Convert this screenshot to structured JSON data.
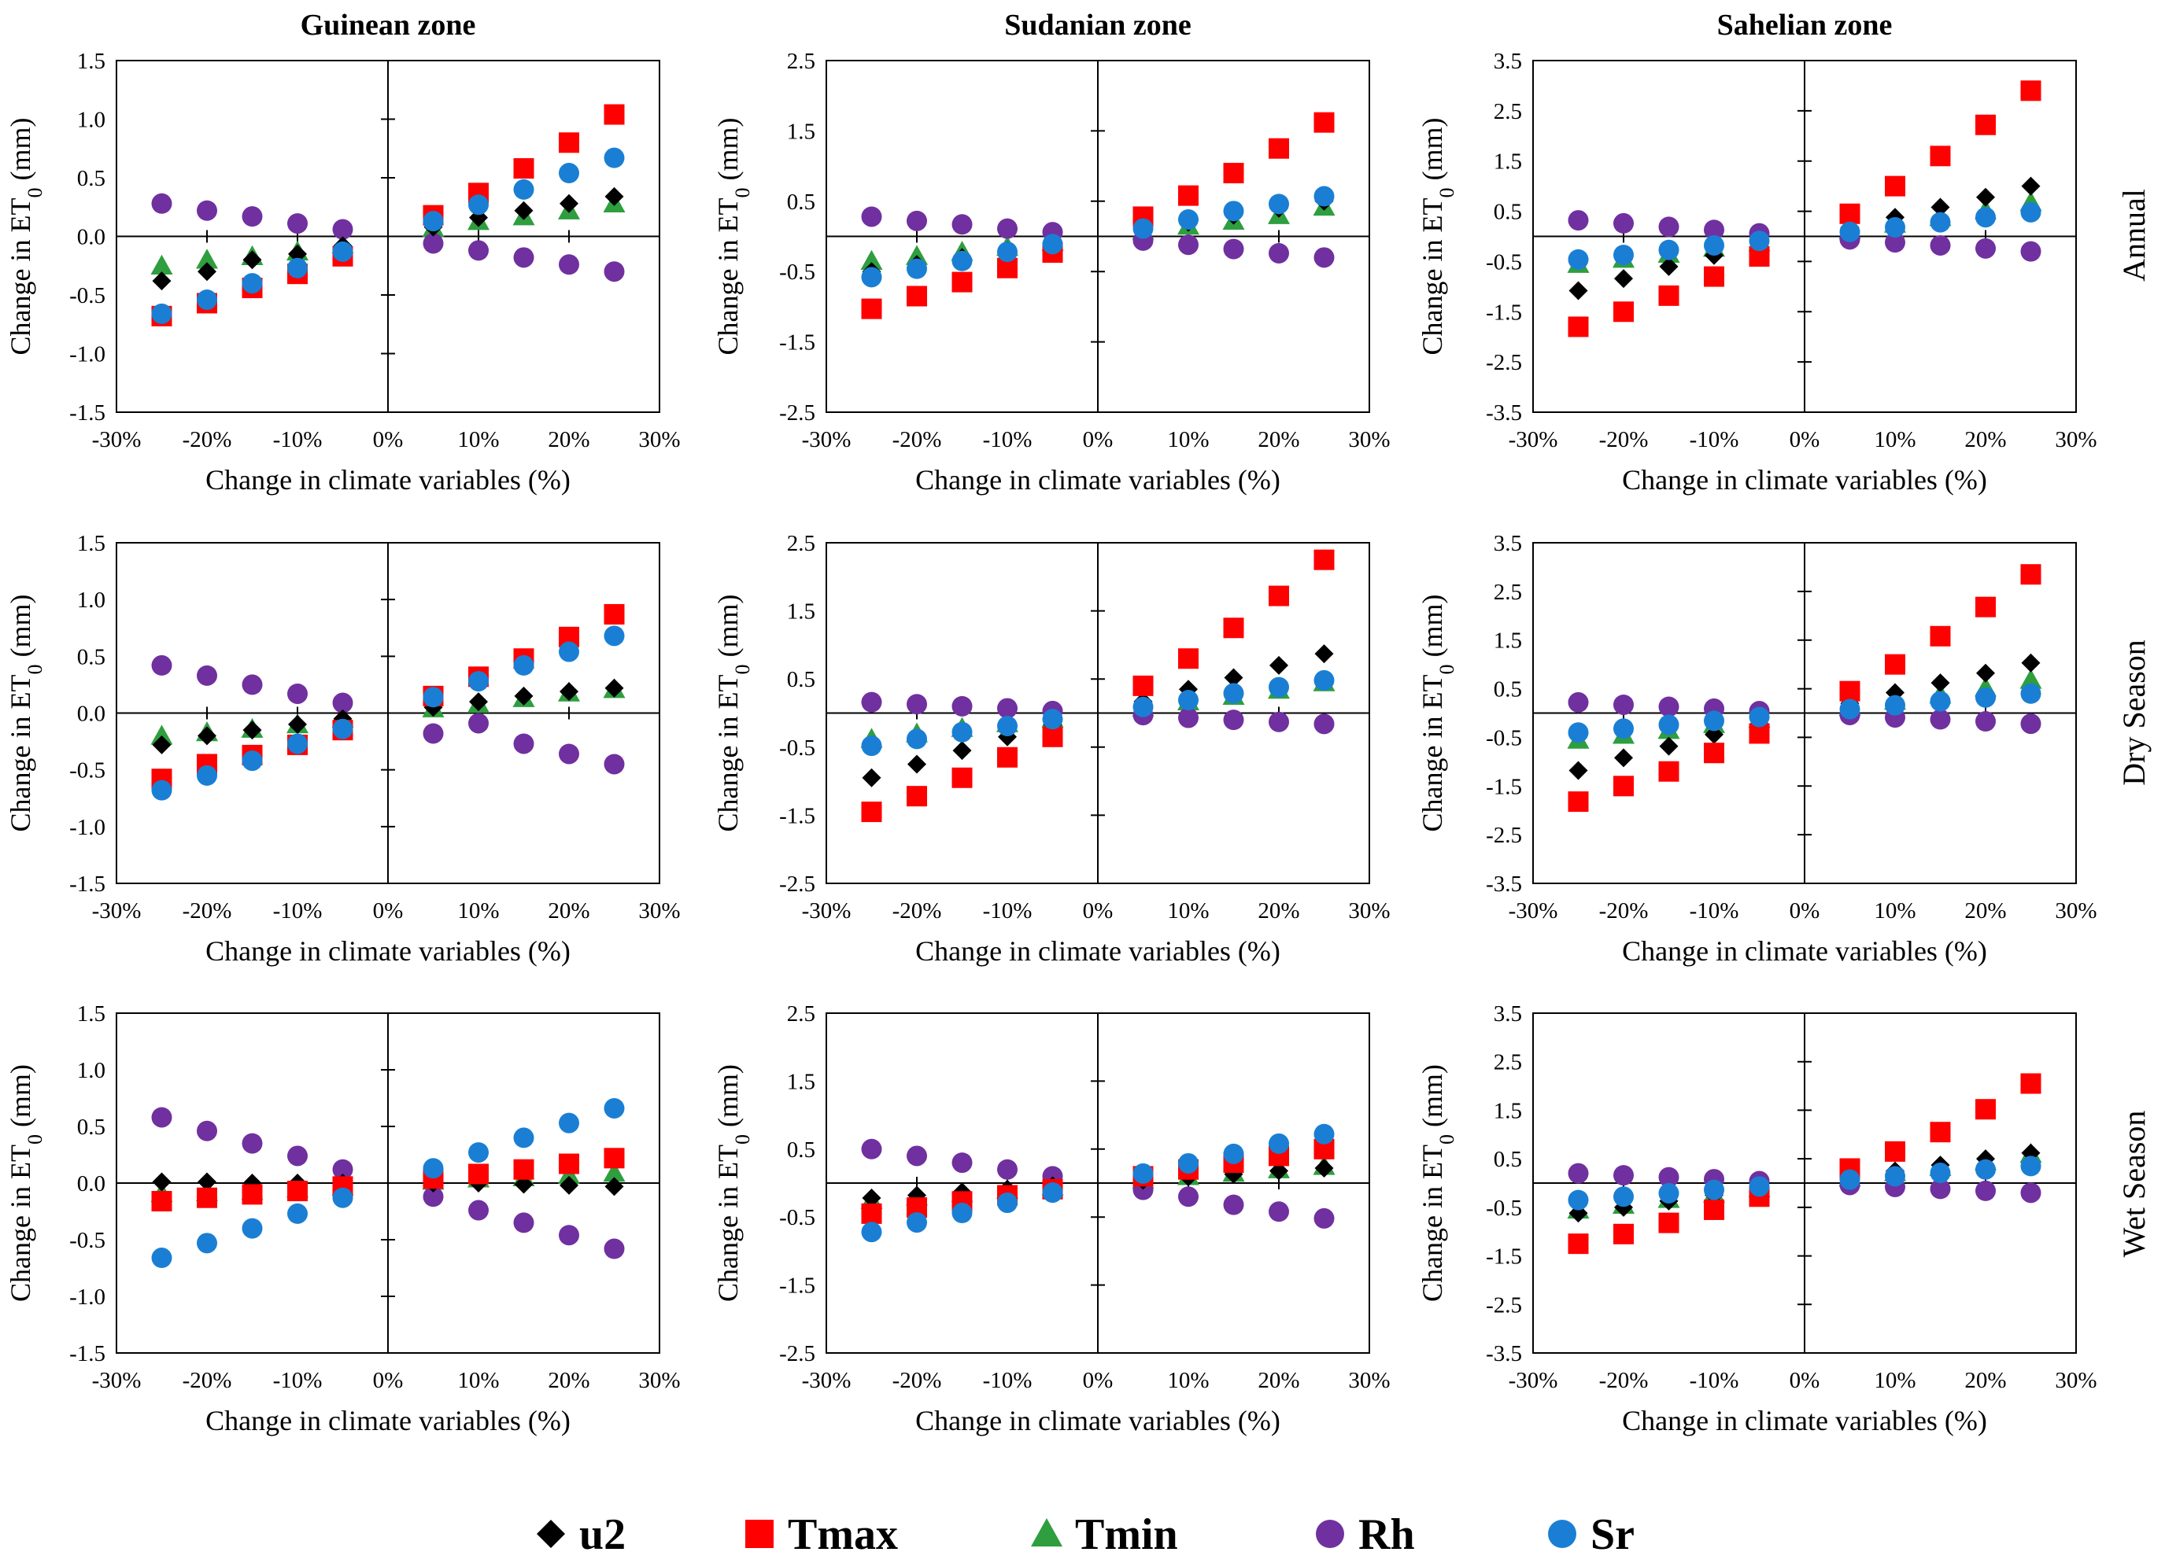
{
  "zones": [
    "Guinean zone",
    "Sudanian zone",
    "Sahelian zone"
  ],
  "seasons": [
    "Annual",
    "Dry Season",
    "Wet Season"
  ],
  "legend": [
    {
      "name": "u2",
      "marker": "diamond",
      "color": "#000000"
    },
    {
      "name": "Tmax",
      "marker": "square",
      "color": "#ff0000"
    },
    {
      "name": "Tmin",
      "marker": "triangle",
      "color": "#2e9e3e"
    },
    {
      "name": "Rh",
      "marker": "circle",
      "color": "#7030a0"
    },
    {
      "name": "Sr",
      "marker": "circle",
      "color": "#1a7fd4"
    }
  ],
  "chart_data": [
    {
      "type": "scatter",
      "zone": "Guinean zone",
      "season": "Annual",
      "xlabel": "Change in climate variables (%)",
      "ylabel": "Change in ET0 (mm)",
      "x": [
        -25,
        -20,
        -15,
        -10,
        -5,
        5,
        10,
        15,
        20,
        25
      ],
      "x_ticks": [
        "-30%",
        "-20%",
        "-10%",
        "0%",
        "10%",
        "20%",
        "30%"
      ],
      "xlim": [
        -30,
        30
      ],
      "ylim": [
        -1.5,
        1.5
      ],
      "y_ticks": [
        "1.5",
        "1.0",
        "0.5",
        "0.0",
        "-0.5",
        "-1.0",
        "-1.5"
      ],
      "series": [
        {
          "name": "u2",
          "values": [
            -0.38,
            -0.3,
            -0.2,
            -0.15,
            -0.08,
            0.08,
            0.16,
            0.22,
            0.28,
            0.34
          ]
        },
        {
          "name": "Tmax",
          "values": [
            -0.68,
            -0.57,
            -0.44,
            -0.32,
            -0.17,
            0.18,
            0.37,
            0.58,
            0.8,
            1.04
          ]
        },
        {
          "name": "Tmin",
          "values": [
            -0.25,
            -0.2,
            -0.17,
            -0.13,
            -0.07,
            0.07,
            0.13,
            0.17,
            0.22,
            0.28
          ]
        },
        {
          "name": "Rh",
          "values": [
            0.28,
            0.22,
            0.17,
            0.11,
            0.06,
            -0.06,
            -0.12,
            -0.18,
            -0.24,
            -0.3
          ]
        },
        {
          "name": "Sr",
          "values": [
            -0.66,
            -0.54,
            -0.4,
            -0.27,
            -0.13,
            0.13,
            0.27,
            0.4,
            0.54,
            0.67
          ]
        }
      ]
    },
    {
      "type": "scatter",
      "zone": "Sudanian zone",
      "season": "Annual",
      "xlabel": "Change in climate variables (%)",
      "ylabel": "Change in ET0 (mm)",
      "x": [
        -25,
        -20,
        -15,
        -10,
        -5,
        5,
        10,
        15,
        20,
        25
      ],
      "x_ticks": [
        "-30%",
        "-20%",
        "-10%",
        "0%",
        "10%",
        "20%",
        "30%"
      ],
      "xlim": [
        -30,
        30
      ],
      "ylim": [
        -2.5,
        2.5
      ],
      "y_ticks": [
        "2.5",
        "1.5",
        "0.5",
        "-0.5",
        "-1.5",
        "-2.5"
      ],
      "series": [
        {
          "name": "u2",
          "values": [
            -0.5,
            -0.4,
            -0.3,
            -0.2,
            -0.1,
            0.1,
            0.2,
            0.3,
            0.4,
            0.5
          ]
        },
        {
          "name": "Tmax",
          "values": [
            -1.03,
            -0.85,
            -0.65,
            -0.45,
            -0.23,
            0.28,
            0.58,
            0.9,
            1.25,
            1.62
          ]
        },
        {
          "name": "Tmin",
          "values": [
            -0.35,
            -0.28,
            -0.22,
            -0.15,
            -0.08,
            0.08,
            0.15,
            0.22,
            0.3,
            0.42
          ]
        },
        {
          "name": "Rh",
          "values": [
            0.28,
            0.22,
            0.17,
            0.11,
            0.06,
            -0.06,
            -0.12,
            -0.18,
            -0.24,
            -0.3
          ]
        },
        {
          "name": "Sr",
          "values": [
            -0.58,
            -0.46,
            -0.35,
            -0.22,
            -0.11,
            0.11,
            0.24,
            0.36,
            0.46,
            0.57
          ]
        }
      ]
    },
    {
      "type": "scatter",
      "zone": "Sahelian zone",
      "season": "Annual",
      "xlabel": "Change in climate variables (%)",
      "ylabel": "Change in ET0 (mm)",
      "x": [
        -25,
        -20,
        -15,
        -10,
        -5,
        5,
        10,
        15,
        20,
        25
      ],
      "x_ticks": [
        "-30%",
        "-20%",
        "-10%",
        "0%",
        "10%",
        "20%",
        "30%"
      ],
      "xlim": [
        -30,
        30
      ],
      "ylim": [
        -3.5,
        3.5
      ],
      "y_ticks": [
        "3.5",
        "2.5",
        "1.5",
        "0.5",
        "-0.5",
        "-1.5",
        "-2.5",
        "-3.5"
      ],
      "series": [
        {
          "name": "u2",
          "values": [
            -1.08,
            -0.84,
            -0.6,
            -0.38,
            -0.18,
            0.18,
            0.38,
            0.58,
            0.78,
            1.0
          ]
        },
        {
          "name": "Tmax",
          "values": [
            -1.8,
            -1.5,
            -1.18,
            -0.8,
            -0.4,
            0.45,
            1.0,
            1.6,
            2.22,
            2.9
          ]
        },
        {
          "name": "Tmin",
          "values": [
            -0.55,
            -0.45,
            -0.35,
            -0.23,
            -0.12,
            0.12,
            0.25,
            0.38,
            0.52,
            0.68
          ]
        },
        {
          "name": "Rh",
          "values": [
            0.32,
            0.26,
            0.19,
            0.13,
            0.06,
            -0.06,
            -0.12,
            -0.18,
            -0.24,
            -0.3
          ]
        },
        {
          "name": "Sr",
          "values": [
            -0.46,
            -0.37,
            -0.27,
            -0.18,
            -0.09,
            0.09,
            0.18,
            0.28,
            0.38,
            0.48
          ]
        }
      ]
    },
    {
      "type": "scatter",
      "zone": "Guinean zone",
      "season": "Dry Season",
      "xlabel": "Change in climate variables (%)",
      "ylabel": "Change in ET0 (mm)",
      "x": [
        -25,
        -20,
        -15,
        -10,
        -5,
        5,
        10,
        15,
        20,
        25
      ],
      "x_ticks": [
        "-30%",
        "-20%",
        "-10%",
        "0%",
        "10%",
        "20%",
        "30%"
      ],
      "xlim": [
        -30,
        30
      ],
      "ylim": [
        -1.5,
        1.5
      ],
      "y_ticks": [
        "1.5",
        "1.0",
        "0.5",
        "0.0",
        "-0.5",
        "-1.0",
        "-1.5"
      ],
      "series": [
        {
          "name": "u2",
          "values": [
            -0.28,
            -0.2,
            -0.15,
            -0.1,
            -0.05,
            0.05,
            0.1,
            0.15,
            0.19,
            0.22
          ]
        },
        {
          "name": "Tmax",
          "values": [
            -0.58,
            -0.45,
            -0.37,
            -0.28,
            -0.15,
            0.15,
            0.32,
            0.48,
            0.67,
            0.87
          ]
        },
        {
          "name": "Tmin",
          "values": [
            -0.2,
            -0.17,
            -0.14,
            -0.1,
            -0.05,
            0.04,
            0.08,
            0.13,
            0.18,
            0.21
          ]
        },
        {
          "name": "Rh",
          "values": [
            0.42,
            0.33,
            0.25,
            0.17,
            0.09,
            -0.18,
            -0.09,
            -0.27,
            -0.36,
            -0.45
          ]
        },
        {
          "name": "Sr",
          "values": [
            -0.68,
            -0.55,
            -0.42,
            -0.27,
            -0.14,
            0.14,
            0.28,
            0.42,
            0.54,
            0.68
          ]
        }
      ]
    },
    {
      "type": "scatter",
      "zone": "Sudanian zone",
      "season": "Dry Season",
      "xlabel": "Change in climate variables (%)",
      "ylabel": "Change in ET0 (mm)",
      "x": [
        -25,
        -20,
        -15,
        -10,
        -5,
        5,
        10,
        15,
        20,
        25
      ],
      "x_ticks": [
        "-30%",
        "-20%",
        "-10%",
        "0%",
        "10%",
        "20%",
        "30%"
      ],
      "xlim": [
        -30,
        30
      ],
      "ylim": [
        -2.5,
        2.5
      ],
      "y_ticks": [
        "2.5",
        "1.5",
        "0.5",
        "-0.5",
        "-1.5",
        "-2.5"
      ],
      "series": [
        {
          "name": "u2",
          "values": [
            -0.95,
            -0.75,
            -0.55,
            -0.35,
            -0.17,
            0.17,
            0.35,
            0.52,
            0.7,
            0.87
          ]
        },
        {
          "name": "Tmax",
          "values": [
            -1.45,
            -1.22,
            -0.95,
            -0.65,
            -0.35,
            0.4,
            0.8,
            1.25,
            1.72,
            2.25
          ]
        },
        {
          "name": "Tmin",
          "values": [
            -0.38,
            -0.3,
            -0.22,
            -0.15,
            -0.08,
            0.08,
            0.17,
            0.25,
            0.34,
            0.45
          ]
        },
        {
          "name": "Rh",
          "values": [
            0.16,
            0.13,
            0.1,
            0.07,
            0.03,
            -0.03,
            -0.07,
            -0.1,
            -0.13,
            -0.16
          ]
        },
        {
          "name": "Sr",
          "values": [
            -0.48,
            -0.38,
            -0.28,
            -0.19,
            -0.09,
            0.09,
            0.19,
            0.29,
            0.38,
            0.48
          ]
        }
      ]
    },
    {
      "type": "scatter",
      "zone": "Sahelian zone",
      "season": "Dry Season",
      "xlabel": "Change in climate variables (%)",
      "ylabel": "Change in ET0 (mm)",
      "x": [
        -25,
        -20,
        -15,
        -10,
        -5,
        5,
        10,
        15,
        20,
        25
      ],
      "x_ticks": [
        "-30%",
        "-20%",
        "-10%",
        "0%",
        "10%",
        "20%",
        "30%"
      ],
      "xlim": [
        -30,
        30
      ],
      "ylim": [
        -3.5,
        3.5
      ],
      "y_ticks": [
        "3.5",
        "2.5",
        "1.5",
        "0.5",
        "-0.5",
        "-1.5",
        "-2.5",
        "-3.5"
      ],
      "series": [
        {
          "name": "u2",
          "values": [
            -1.18,
            -0.92,
            -0.68,
            -0.44,
            -0.22,
            0.2,
            0.42,
            0.62,
            0.82,
            1.03
          ]
        },
        {
          "name": "Tmax",
          "values": [
            -1.82,
            -1.5,
            -1.2,
            -0.82,
            -0.42,
            0.45,
            1.0,
            1.58,
            2.18,
            2.85
          ]
        },
        {
          "name": "Tmin",
          "values": [
            -0.55,
            -0.45,
            -0.35,
            -0.23,
            -0.12,
            0.12,
            0.25,
            0.38,
            0.52,
            0.68
          ]
        },
        {
          "name": "Rh",
          "values": [
            0.22,
            0.17,
            0.13,
            0.09,
            0.04,
            -0.04,
            -0.09,
            -0.13,
            -0.17,
            -0.22
          ]
        },
        {
          "name": "Sr",
          "values": [
            -0.4,
            -0.32,
            -0.24,
            -0.16,
            -0.08,
            0.08,
            0.16,
            0.24,
            0.32,
            0.4
          ]
        }
      ]
    },
    {
      "type": "scatter",
      "zone": "Guinean zone",
      "season": "Wet Season",
      "xlabel": "Change in climate variables (%)",
      "ylabel": "Change in ET0 (mm)",
      "x": [
        -25,
        -20,
        -15,
        -10,
        -5,
        5,
        10,
        15,
        20,
        25
      ],
      "x_ticks": [
        "-30%",
        "-20%",
        "-10%",
        "0%",
        "10%",
        "20%",
        "30%"
      ],
      "xlim": [
        -30,
        30
      ],
      "ylim": [
        -1.5,
        1.5
      ],
      "y_ticks": [
        "1.5",
        "1.0",
        "0.5",
        "0.0",
        "-0.5",
        "-1.0",
        "-1.5"
      ],
      "series": [
        {
          "name": "u2",
          "values": [
            0.01,
            0.01,
            0.0,
            0.0,
            0.0,
            0.0,
            0.0,
            -0.01,
            -0.02,
            -0.03
          ]
        },
        {
          "name": "Tmax",
          "values": [
            -0.16,
            -0.13,
            -0.1,
            -0.07,
            -0.03,
            0.04,
            0.08,
            0.12,
            0.17,
            0.22
          ]
        },
        {
          "name": "Tmin",
          "values": [
            -0.09,
            -0.08,
            -0.07,
            -0.05,
            -0.03,
            0.02,
            0.04,
            0.05,
            0.07,
            0.09
          ]
        },
        {
          "name": "Rh",
          "values": [
            0.58,
            0.46,
            0.35,
            0.24,
            0.12,
            -0.12,
            -0.24,
            -0.35,
            -0.46,
            -0.58
          ]
        },
        {
          "name": "Sr",
          "values": [
            -0.66,
            -0.53,
            -0.4,
            -0.27,
            -0.13,
            0.13,
            0.27,
            0.4,
            0.53,
            0.66
          ]
        }
      ]
    },
    {
      "type": "scatter",
      "zone": "Sudanian zone",
      "season": "Wet Season",
      "xlabel": "Change in climate variables (%)",
      "ylabel": "Change in ET0 (mm)",
      "x": [
        -25,
        -20,
        -15,
        -10,
        -5,
        5,
        10,
        15,
        20,
        25
      ],
      "x_ticks": [
        "-30%",
        "-20%",
        "-10%",
        "0%",
        "10%",
        "20%",
        "30%"
      ],
      "xlim": [
        -30,
        30
      ],
      "ylim": [
        -2.5,
        2.5
      ],
      "y_ticks": [
        "2.5",
        "1.5",
        "0.5",
        "-0.5",
        "-1.5",
        "-2.5"
      ],
      "series": [
        {
          "name": "u2",
          "values": [
            -0.22,
            -0.18,
            -0.13,
            -0.09,
            -0.04,
            0.04,
            0.09,
            0.13,
            0.18,
            0.22
          ]
        },
        {
          "name": "Tmax",
          "values": [
            -0.45,
            -0.36,
            -0.27,
            -0.18,
            -0.09,
            0.1,
            0.2,
            0.3,
            0.4,
            0.5
          ]
        },
        {
          "name": "Tmin",
          "values": [
            -0.25,
            -0.2,
            -0.15,
            -0.1,
            -0.05,
            0.05,
            0.1,
            0.15,
            0.2,
            0.25
          ]
        },
        {
          "name": "Rh",
          "values": [
            0.5,
            0.4,
            0.3,
            0.2,
            0.1,
            -0.1,
            -0.2,
            -0.32,
            -0.42,
            -0.52
          ]
        },
        {
          "name": "Sr",
          "values": [
            -0.72,
            -0.58,
            -0.44,
            -0.29,
            -0.14,
            0.14,
            0.29,
            0.43,
            0.58,
            0.72
          ]
        }
      ]
    },
    {
      "type": "scatter",
      "zone": "Sahelian zone",
      "season": "Wet Season",
      "xlabel": "Change in climate variables (%)",
      "ylabel": "Change in ET0 (mm)",
      "x": [
        -25,
        -20,
        -15,
        -10,
        -5,
        5,
        10,
        15,
        20,
        25
      ],
      "x_ticks": [
        "-30%",
        "-20%",
        "-10%",
        "0%",
        "10%",
        "20%",
        "30%"
      ],
      "xlim": [
        -30,
        30
      ],
      "ylim": [
        -3.5,
        3.5
      ],
      "y_ticks": [
        "3.5",
        "2.5",
        "1.5",
        "0.5",
        "-0.5",
        "-1.5",
        "-2.5",
        "-3.5"
      ],
      "series": [
        {
          "name": "u2",
          "values": [
            -0.62,
            -0.5,
            -0.37,
            -0.25,
            -0.12,
            0.12,
            0.25,
            0.37,
            0.5,
            0.62
          ]
        },
        {
          "name": "Tmax",
          "values": [
            -1.25,
            -1.05,
            -0.82,
            -0.55,
            -0.28,
            0.3,
            0.65,
            1.05,
            1.52,
            2.05
          ]
        },
        {
          "name": "Tmin",
          "values": [
            -0.55,
            -0.45,
            -0.33,
            -0.22,
            -0.11,
            0.11,
            0.22,
            0.33,
            0.45,
            0.6
          ]
        },
        {
          "name": "Rh",
          "values": [
            0.2,
            0.16,
            0.12,
            0.08,
            0.04,
            -0.04,
            -0.08,
            -0.12,
            -0.16,
            -0.2
          ]
        },
        {
          "name": "Sr",
          "values": [
            -0.35,
            -0.28,
            -0.21,
            -0.14,
            -0.07,
            0.07,
            0.14,
            0.21,
            0.28,
            0.35
          ]
        }
      ]
    }
  ]
}
